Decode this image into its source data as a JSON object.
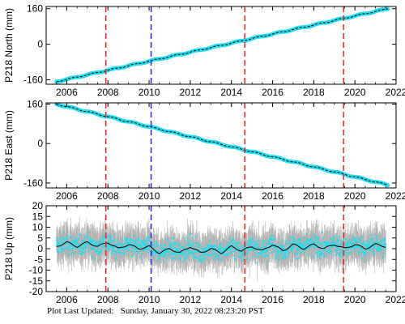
{
  "chart_data": [
    {
      "type": "line",
      "ylabel": "P218 North (mm)",
      "xlim": [
        2005.0,
        2022.0
      ],
      "ylim": [
        -180,
        170
      ],
      "xticks": [
        2006,
        2008,
        2010,
        2012,
        2014,
        2016,
        2018,
        2020,
        2022
      ],
      "yticks": [
        160,
        0,
        -160
      ],
      "grid": false,
      "series": [
        {
          "type": "line",
          "color": "#22DDEE",
          "x": [
            2005.5,
            2021.6
          ],
          "values": [
            -168,
            160
          ]
        },
        {
          "type": "line",
          "color": "#000000",
          "x": [
            2005.5,
            2021.6
          ],
          "values": [
            -168,
            160
          ]
        }
      ],
      "vlines": [
        {
          "x": 2007.9,
          "color": "#EE2222",
          "style": "dashed"
        },
        {
          "x": 2010.1,
          "color": "#2222EE",
          "style": "dashed"
        },
        {
          "x": 2014.65,
          "color": "#EE2222",
          "style": "dashed"
        },
        {
          "x": 2019.45,
          "color": "#EE2222",
          "style": "dashed"
        }
      ]
    },
    {
      "type": "line",
      "ylabel": "P218 East (mm)",
      "xlim": [
        2005.0,
        2022.0
      ],
      "ylim": [
        -180,
        165
      ],
      "xticks": [
        2006,
        2008,
        2010,
        2012,
        2014,
        2016,
        2018,
        2020,
        2022
      ],
      "yticks": [
        160,
        0,
        -160
      ],
      "grid": false,
      "series": [
        {
          "type": "line",
          "color": "#22DDEE",
          "x": [
            2005.5,
            2021.6
          ],
          "values": [
            160,
            -168
          ]
        },
        {
          "type": "line",
          "color": "#000000",
          "x": [
            2005.5,
            2021.6
          ],
          "values": [
            160,
            -168
          ]
        }
      ],
      "vlines": [
        {
          "x": 2007.9,
          "color": "#EE2222",
          "style": "dashed"
        },
        {
          "x": 2010.1,
          "color": "#2222EE",
          "style": "dashed"
        },
        {
          "x": 2014.65,
          "color": "#EE2222",
          "style": "dashed"
        },
        {
          "x": 2019.45,
          "color": "#EE2222",
          "style": "dashed"
        }
      ]
    },
    {
      "type": "scatter",
      "ylabel": "P218 Up (mm)",
      "xlim": [
        2005.0,
        2022.0
      ],
      "ylim": [
        -20,
        20
      ],
      "xticks": [
        2006,
        2008,
        2010,
        2012,
        2014,
        2016,
        2018,
        2020,
        2022
      ],
      "yticks": [
        20,
        15,
        10,
        5,
        0,
        -5,
        -10,
        -15,
        -20
      ],
      "grid": false,
      "series": [
        {
          "type": "line",
          "color": "#000000",
          "x": [
            2005.5,
            2006.0,
            2006.5,
            2007.0,
            2007.5,
            2008.0,
            2008.5,
            2009.0,
            2009.5,
            2010.0,
            2010.5,
            2011.0,
            2011.5,
            2012.0,
            2012.5,
            2013.0,
            2013.5,
            2014.0,
            2014.5,
            2015.0,
            2015.5,
            2016.0,
            2016.5,
            2017.0,
            2017.5,
            2018.0,
            2018.5,
            2019.0,
            2019.5,
            2020.0,
            2020.5,
            2021.0,
            2021.5
          ],
          "values": [
            1,
            3,
            1,
            3,
            1,
            3,
            0,
            2,
            0,
            1,
            -2,
            0,
            -2,
            1,
            -2,
            0,
            -2,
            1,
            -1,
            1,
            -1,
            2,
            -1,
            2,
            0,
            2,
            0,
            2,
            0,
            2,
            0,
            2,
            1
          ]
        }
      ],
      "scatter_color": "#22DDEE",
      "errorbar_color": "#AAAAAA",
      "vlines": [
        {
          "x": 2007.9,
          "color": "#EE2222",
          "style": "dashed"
        },
        {
          "x": 2010.1,
          "color": "#2222EE",
          "style": "dashed"
        },
        {
          "x": 2014.65,
          "color": "#EE2222",
          "style": "dashed"
        },
        {
          "x": 2019.45,
          "color": "#EE2222",
          "style": "dashed"
        }
      ]
    }
  ],
  "footer": {
    "label": "Plot Last Updated:",
    "timestamp": "Sunday, January 30, 2022 08:23:20 PST"
  }
}
